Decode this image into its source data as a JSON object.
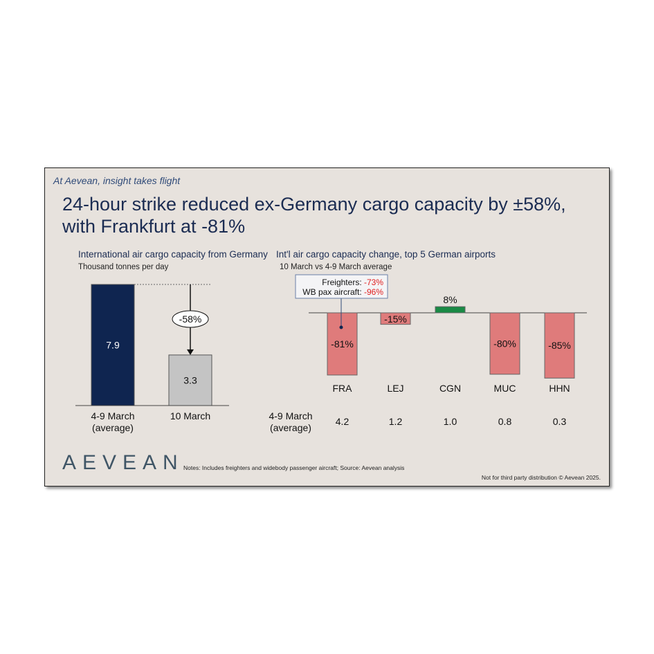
{
  "header": {
    "tagline": "At Aevean, insight takes flight",
    "title": "24-hour strike reduced ex-Germany cargo capacity by ±58%, with Frankfurt at -81%"
  },
  "footer": {
    "logo": "AEVEAN",
    "notes": "Notes: Includes freighters and widebody passenger aircraft; Source: Aevean analysis",
    "distribution": "Not for third party distribution © Aevean 2025."
  },
  "chart_data": [
    {
      "type": "bar",
      "title": "International air cargo capacity from Germany",
      "subtitle": "Thousand tonnes per day",
      "categories": [
        "4-9 March\n(average)",
        "10 March"
      ],
      "values": [
        7.9,
        3.3
      ],
      "value_labels": [
        "7.9",
        "3.3"
      ],
      "colors": [
        "#0f2550",
        "#c4c4c4"
      ],
      "change_label": "-58%",
      "ylim": [
        0,
        8
      ]
    },
    {
      "type": "bar",
      "title": "Int'l air cargo capacity change, top 5 German airports",
      "subtitle": "10 March vs 4-9 March average",
      "categories": [
        "FRA",
        "LEJ",
        "CGN",
        "MUC",
        "HHN"
      ],
      "values": [
        -81,
        -15,
        8,
        -80,
        -85
      ],
      "value_labels": [
        "-81%",
        "-15%",
        "8%",
        "-80%",
        "-85%"
      ],
      "row_label": "4-9 March\n(average)",
      "row_values": [
        "4.2",
        "1.2",
        "1.0",
        "0.8",
        "0.3"
      ],
      "negative_color": "#df7b7b",
      "positive_color": "#1a8a45",
      "callout": {
        "lines": [
          {
            "label": "Freighters: ",
            "value": "-73%"
          },
          {
            "label": "WB pax aircraft: ",
            "value": "-96%"
          }
        ],
        "value_color": "#e02020",
        "target": "FRA"
      }
    }
  ]
}
